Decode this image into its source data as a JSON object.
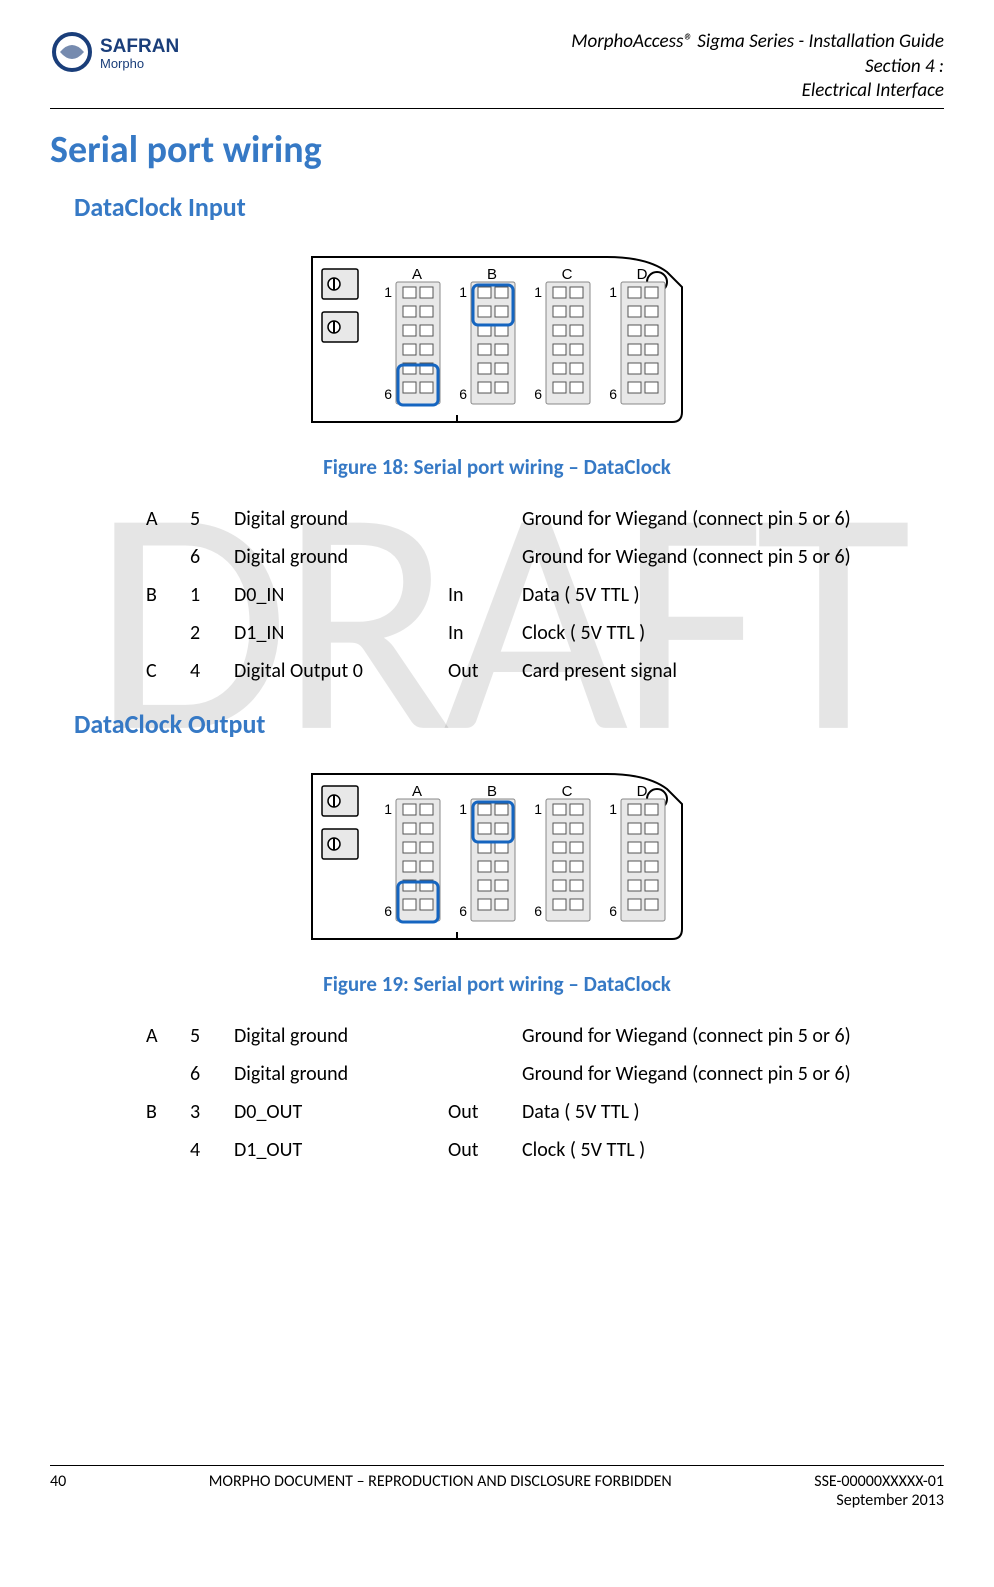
{
  "header": {
    "doc_title": "MorphoAccess® Sigma Series - Installation Guide",
    "section_line1": "Section 4 :",
    "section_line2": "Electrical Interface",
    "logo_text1": "SAFRAN",
    "logo_text2": "Morpho"
  },
  "h1": "Serial port wiring",
  "input_section": {
    "title": "DataClock Input",
    "caption": "Figure 18: Serial port wiring – DataClock",
    "board": {
      "connectors": [
        "A",
        "B",
        "C",
        "D"
      ],
      "top_pin": "1",
      "bottom_pin": "6",
      "highlight_color": "#1565c0",
      "highlights": [
        {
          "connector": "A",
          "pos": "bottom"
        },
        {
          "connector": "B",
          "pos": "top"
        }
      ]
    },
    "rows": [
      {
        "conn": "A",
        "pin": "5",
        "name": "Digital ground",
        "dir": "",
        "desc": "Ground for Wiegand (connect pin 5 or 6)"
      },
      {
        "conn": "",
        "pin": "6",
        "name": "Digital ground",
        "dir": "",
        "desc": "Ground for Wiegand (connect pin 5 or 6)"
      },
      {
        "conn": "B",
        "pin": "1",
        "name": "D0_IN",
        "dir": "In",
        "desc": "Data  ( 5V TTL )"
      },
      {
        "conn": "",
        "pin": "2",
        "name": "D1_IN",
        "dir": "In",
        "desc": "Clock ( 5V TTL )"
      },
      {
        "conn": "C",
        "pin": "4",
        "name": "Digital Output 0",
        "dir": "Out",
        "desc": "Card present signal"
      }
    ]
  },
  "output_section": {
    "title": "DataClock Output",
    "caption": "Figure 19: Serial port wiring – DataClock",
    "board": {
      "connectors": [
        "A",
        "B",
        "C",
        "D"
      ],
      "top_pin": "1",
      "bottom_pin": "6",
      "highlight_color": "#1565c0",
      "highlights": [
        {
          "connector": "A",
          "pos": "bottom"
        },
        {
          "connector": "B",
          "pos": "top"
        }
      ]
    },
    "rows": [
      {
        "conn": "A",
        "pin": "5",
        "name": "Digital ground",
        "dir": "",
        "desc": "Ground for Wiegand (connect pin 5 or 6)"
      },
      {
        "conn": "",
        "pin": "6",
        "name": "Digital ground",
        "dir": "",
        "desc": "Ground for Wiegand (connect pin 5 or 6)"
      },
      {
        "conn": "B",
        "pin": "3",
        "name": "D0_OUT",
        "dir": "Out",
        "desc": "Data  ( 5V TTL )"
      },
      {
        "conn": "",
        "pin": "4",
        "name": "D1_OUT",
        "dir": "Out",
        "desc": "Clock ( 5V TTL )"
      }
    ]
  },
  "watermark": "DRAFT",
  "footer": {
    "page": "40",
    "mid": "MORPHO DOCUMENT – REPRODUCTION AND DISCLOSURE FORBIDDEN",
    "right1": "SSE-00000XXXXX-01",
    "right2": "September 2013"
  }
}
